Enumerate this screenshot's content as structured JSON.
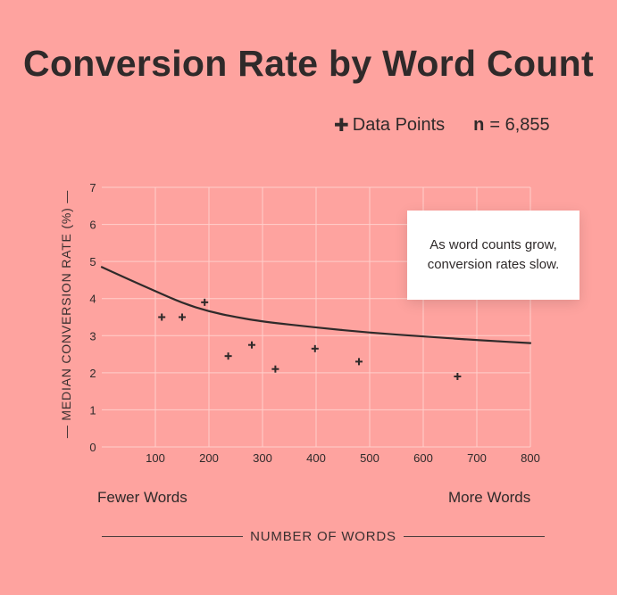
{
  "chart_data": {
    "type": "scatter",
    "title": "Conversion Rate by Word Count",
    "xlabel": "NUMBER OF WORDS",
    "ylabel": "MEDIAN CONVERSION RATE (%)",
    "xlim": [
      0,
      800
    ],
    "ylim": [
      0,
      7
    ],
    "x_ticks": [
      100,
      200,
      300,
      400,
      500,
      600,
      700,
      800
    ],
    "y_ticks": [
      0,
      1,
      2,
      3,
      4,
      5,
      6,
      7
    ],
    "grid": true,
    "legend": {
      "marker_label": "Data Points",
      "n_label": "n",
      "n_value": "= 6,855",
      "placement": "top-right"
    },
    "series": [
      {
        "type": "scatter",
        "marker": "plus",
        "points": [
          {
            "x": 112,
            "y": 3.5
          },
          {
            "x": 150,
            "y": 3.5
          },
          {
            "x": 192,
            "y": 3.9
          },
          {
            "x": 236,
            "y": 2.45
          },
          {
            "x": 280,
            "y": 2.75
          },
          {
            "x": 324,
            "y": 2.1
          },
          {
            "x": 398,
            "y": 2.65
          },
          {
            "x": 480,
            "y": 2.3
          },
          {
            "x": 664,
            "y": 1.9
          }
        ]
      },
      {
        "type": "line",
        "points": [
          {
            "x": 0,
            "y": 4.85
          },
          {
            "x": 50,
            "y": 4.52
          },
          {
            "x": 100,
            "y": 4.2
          },
          {
            "x": 150,
            "y": 3.88
          },
          {
            "x": 200,
            "y": 3.65
          },
          {
            "x": 250,
            "y": 3.5
          },
          {
            "x": 300,
            "y": 3.38
          },
          {
            "x": 400,
            "y": 3.22
          },
          {
            "x": 500,
            "y": 3.08
          },
          {
            "x": 600,
            "y": 2.98
          },
          {
            "x": 700,
            "y": 2.88
          },
          {
            "x": 800,
            "y": 2.8
          }
        ]
      }
    ],
    "annotation": [
      "As word counts grow,",
      "conversion rates slow."
    ],
    "below_axis_left": "Fewer Words",
    "below_axis_right": "More  Words"
  },
  "colors": {
    "background": "#fea39f",
    "ink": "#2f2a2a",
    "grid": "#ffcfcb",
    "annotation_bg": "#ffffff"
  }
}
